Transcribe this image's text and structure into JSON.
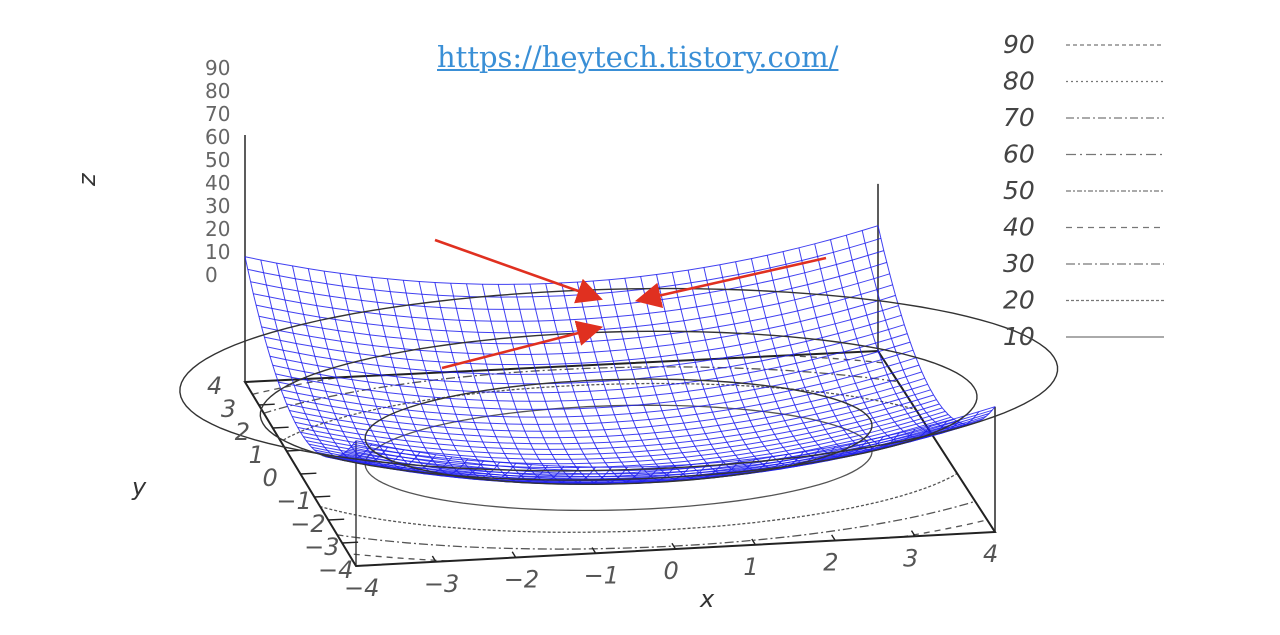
{
  "link": {
    "text": "https://heytech.tistory.com/"
  },
  "chart_data": {
    "type": "surface",
    "surface_function": "z = x^2 + 2y^2 (paraboloid)",
    "zlabel": "z",
    "xlabel": "x",
    "ylabel": "y",
    "x_ticks": [
      "−4",
      "−3",
      "−2",
      "−1",
      "0",
      "1",
      "2",
      "3",
      "4"
    ],
    "y_ticks": [
      "4",
      "3",
      "2",
      "1",
      "0",
      "−1",
      "−2",
      "−3",
      "−4"
    ],
    "z_ticks": [
      "0",
      "10",
      "20",
      "30",
      "40",
      "50",
      "60",
      "70",
      "80",
      "90"
    ],
    "xlim": [
      -4,
      4
    ],
    "ylim": [
      -4,
      4
    ],
    "zlim": [
      0,
      90
    ],
    "contour_levels": [
      {
        "label": "90",
        "value": 90,
        "dash": "4,3"
      },
      {
        "label": "80",
        "value": 80,
        "dash": "2,3"
      },
      {
        "label": "70",
        "value": 70,
        "dash": "8,3,2,3"
      },
      {
        "label": "60",
        "value": 60,
        "dash": "10,4,2,4"
      },
      {
        "label": "50",
        "value": 50,
        "dash": "5,2,2,2"
      },
      {
        "label": "40",
        "value": 40,
        "dash": "6,5"
      },
      {
        "label": "30",
        "value": 30,
        "dash": "9,3,2,3"
      },
      {
        "label": "20",
        "value": 20,
        "dash": "3,2"
      },
      {
        "label": "10",
        "value": 10,
        "dash": ""
      }
    ],
    "legend_position": "right",
    "annotations": "three red arrows pointing to the surface minimum",
    "colors": {
      "surface": "#2020ee",
      "arrows": "#e03020",
      "axes": "#222222",
      "link": "#3a8fd6"
    }
  }
}
